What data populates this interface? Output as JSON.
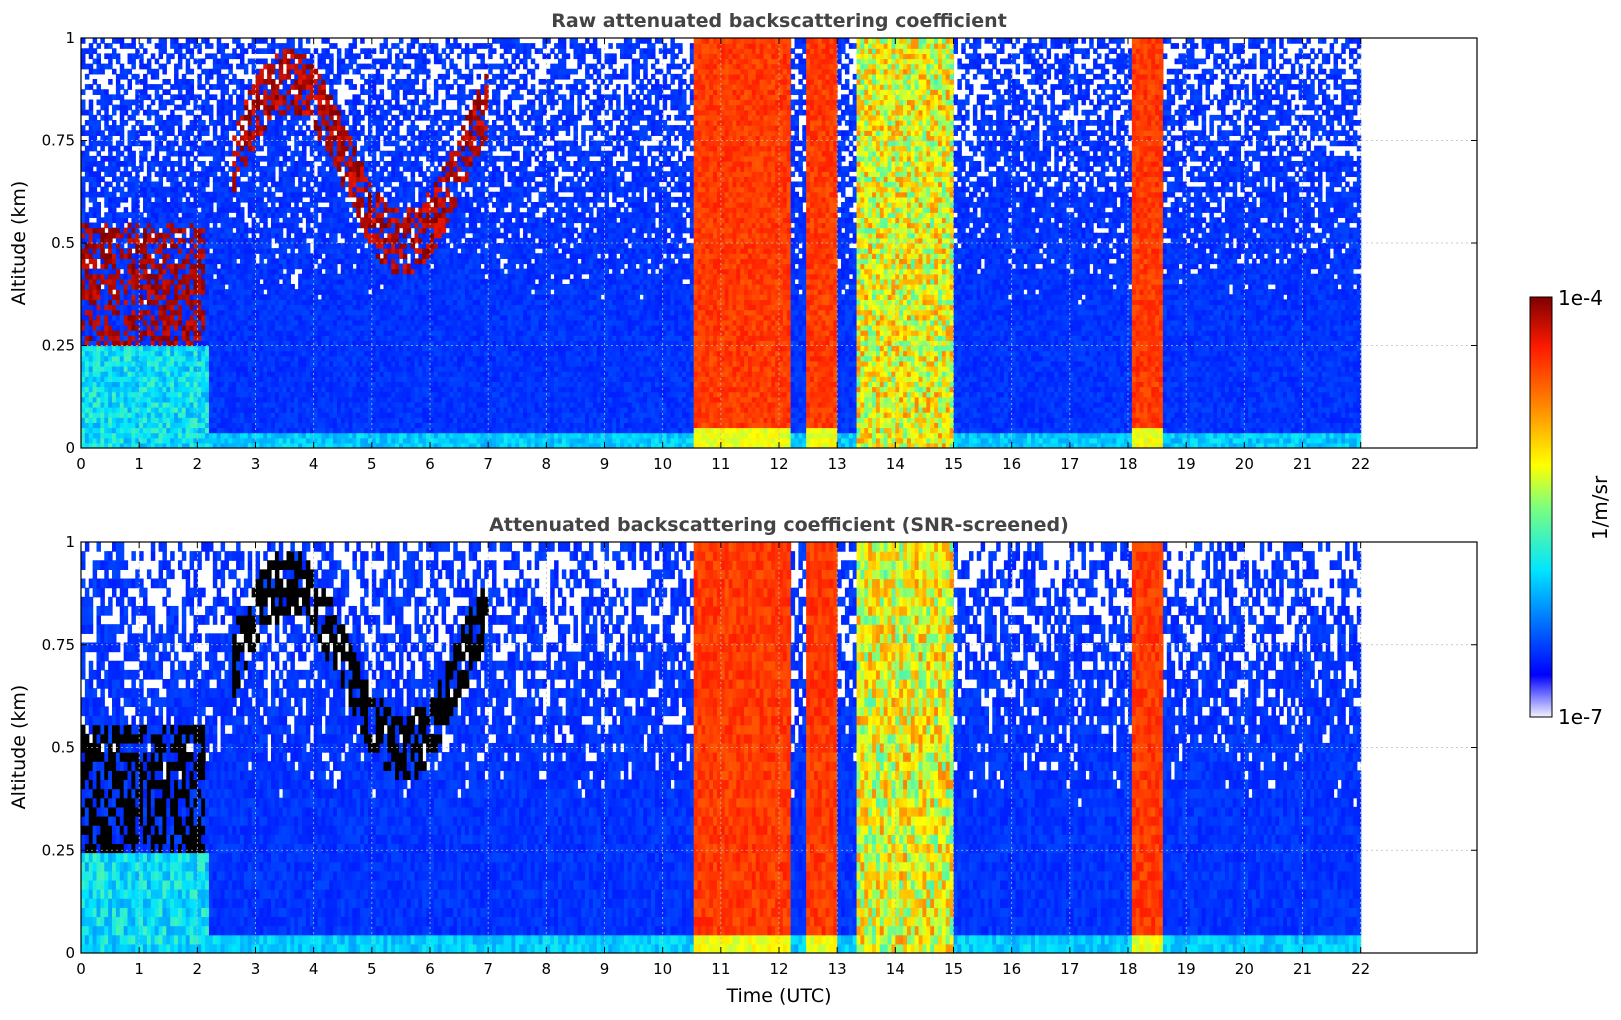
{
  "chart_data": [
    {
      "type": "heatmap",
      "title": "Raw attenuated backscattering coefficient",
      "ylabel": "Altitude (km)",
      "xlabel": "",
      "xlim": [
        0,
        24
      ],
      "ylim": [
        0,
        1
      ],
      "xticks": [
        "0",
        "1",
        "2",
        "3",
        "4",
        "5",
        "6",
        "7",
        "8",
        "9",
        "10",
        "11",
        "12",
        "13",
        "14",
        "15",
        "16",
        "17",
        "18",
        "19",
        "20",
        "21",
        "22"
      ],
      "yticks": [
        "0",
        "0.25",
        "0.5",
        "0.75",
        "1"
      ],
      "grid": true,
      "screened": false,
      "data_extent_hours": [
        0,
        22
      ],
      "cloud_bands": [
        {
          "start": 10.55,
          "end": 12.2,
          "level": "high"
        },
        {
          "start": 12.45,
          "end": 13.0,
          "level": "high"
        },
        {
          "start": 13.3,
          "end": 14.7,
          "level": "medium"
        },
        {
          "start": 14.75,
          "end": 15.0,
          "level": "medium"
        },
        {
          "start": 18.05,
          "end": 18.6,
          "level": "high"
        }
      ],
      "aerosol_layer": {
        "start": 0,
        "end": 2.1,
        "altitude_km": [
          0.25,
          0.55
        ]
      },
      "elevated_layer": {
        "start": 2.6,
        "end": 7.0,
        "altitude_km": [
          0.45,
          1.0
        ]
      }
    },
    {
      "type": "heatmap",
      "title": "Attenuated backscattering coefficient (SNR-screened)",
      "ylabel": "Altitude (km)",
      "xlabel": "Time (UTC)",
      "xlim": [
        0,
        24
      ],
      "ylim": [
        0,
        1
      ],
      "xticks": [
        "0",
        "1",
        "2",
        "3",
        "4",
        "5",
        "6",
        "7",
        "8",
        "9",
        "10",
        "11",
        "12",
        "13",
        "14",
        "15",
        "16",
        "17",
        "18",
        "19",
        "20",
        "21",
        "22"
      ],
      "yticks": [
        "0",
        "0.25",
        "0.5",
        "0.75",
        "1"
      ],
      "grid": true,
      "screened": true,
      "data_extent_hours": [
        0,
        22
      ],
      "cloud_bands": [
        {
          "start": 10.55,
          "end": 12.2,
          "level": "high"
        },
        {
          "start": 12.45,
          "end": 13.0,
          "level": "high"
        },
        {
          "start": 13.3,
          "end": 14.7,
          "level": "medium"
        },
        {
          "start": 14.75,
          "end": 15.0,
          "level": "medium"
        },
        {
          "start": 18.05,
          "end": 18.6,
          "level": "high"
        }
      ],
      "aerosol_layer": {
        "start": 0,
        "end": 2.1,
        "altitude_km": [
          0.25,
          0.55
        ]
      },
      "elevated_layer": {
        "start": 2.6,
        "end": 7.0,
        "altitude_km": [
          0.45,
          1.0
        ]
      }
    }
  ],
  "colorbar": {
    "label": "1/m/sr",
    "max_label": "1e-4",
    "min_label": "1e-7",
    "colormap": "jet"
  }
}
